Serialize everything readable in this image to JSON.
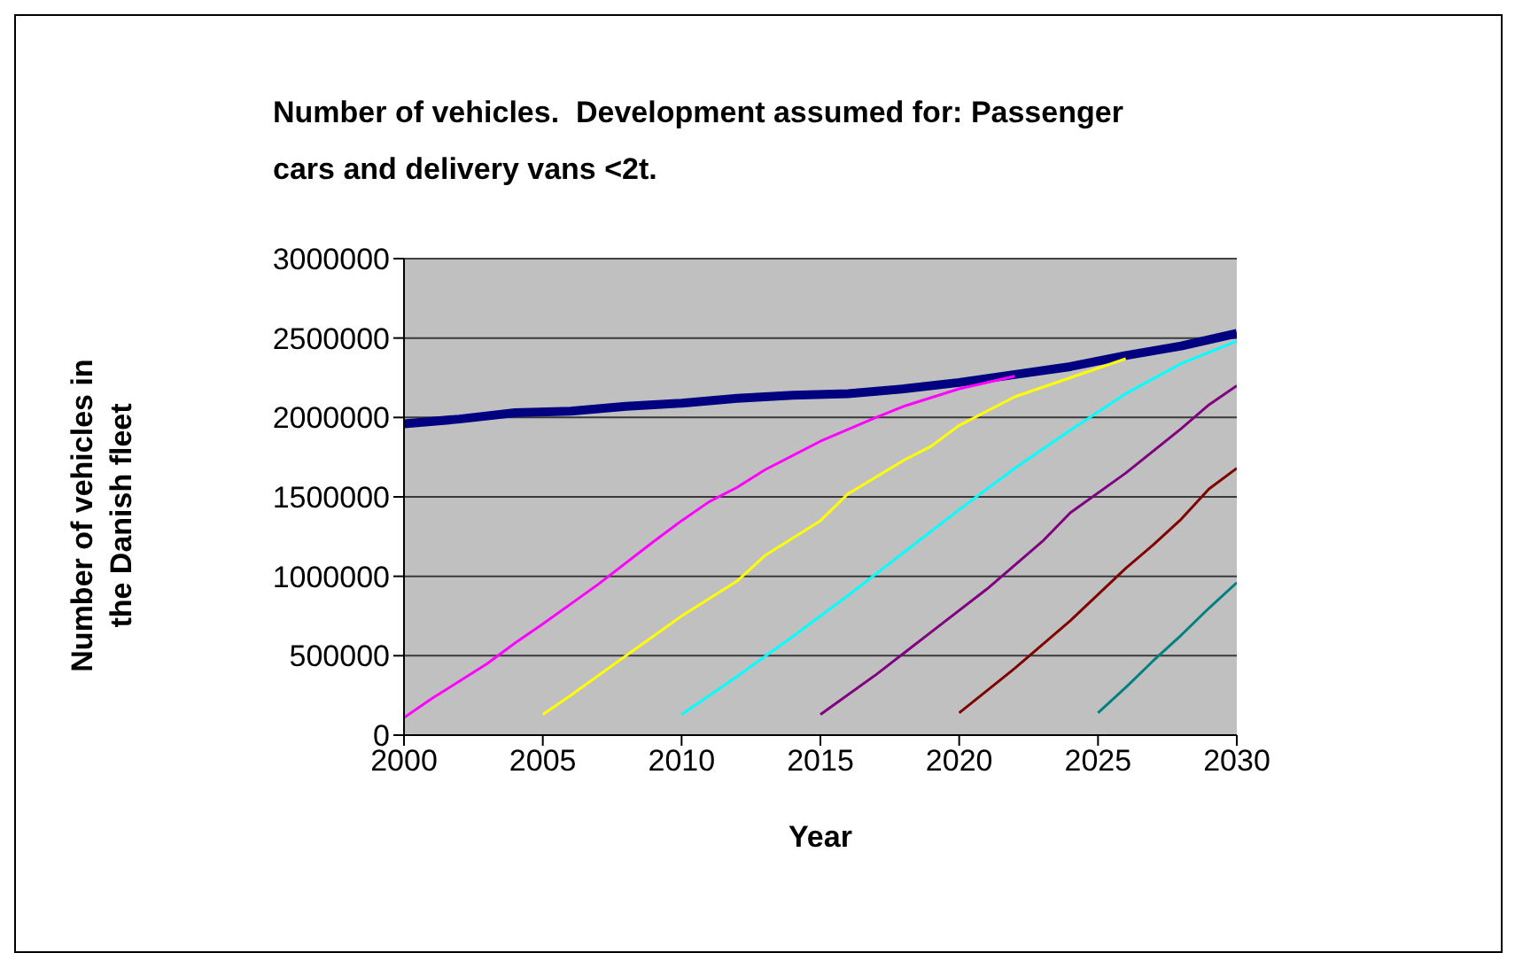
{
  "chart_data": {
    "type": "line",
    "title": "Number of vehicles.  Development assumed for: Passenger cars and delivery vans <2t.",
    "xlabel": "Year",
    "ylabel": "Number of vehicles in the Danish fleet",
    "xlim": [
      2000,
      2030
    ],
    "xticks": [
      2000,
      2005,
      2010,
      2015,
      2020,
      2025,
      2030
    ],
    "ylim": [
      0,
      3000000
    ],
    "yticks": [
      0,
      500000,
      1000000,
      1500000,
      2000000,
      2500000,
      3000000
    ],
    "grid": "y",
    "marker": "none",
    "line_style": "solid",
    "series": [
      {
        "color": "#000080",
        "x": [
          2000,
          2002,
          2004,
          2006,
          2008,
          2010,
          2012,
          2014,
          2016,
          2018,
          2020,
          2022,
          2024,
          2026,
          2028,
          2030
        ],
        "values": [
          1960000,
          1990000,
          2030000,
          2040000,
          2070000,
          2090000,
          2120000,
          2140000,
          2150000,
          2180000,
          2220000,
          2270000,
          2320000,
          2390000,
          2450000,
          2530000
        ]
      },
      {
        "color": "#ff00ff",
        "x": [
          2000,
          2001,
          2003,
          2004,
          2005,
          2007,
          2009,
          2010,
          2011,
          2012,
          2013,
          2015,
          2017,
          2018,
          2020,
          2022
        ],
        "values": [
          110000,
          230000,
          450000,
          580000,
          700000,
          950000,
          1220000,
          1350000,
          1470000,
          1560000,
          1670000,
          1850000,
          2000000,
          2070000,
          2180000,
          2260000
        ]
      },
      {
        "color": "#ffff00",
        "x": [
          2005,
          2006,
          2008,
          2010,
          2012,
          2013,
          2015,
          2016,
          2018,
          2019,
          2020,
          2022,
          2024,
          2026
        ],
        "values": [
          130000,
          250000,
          500000,
          750000,
          970000,
          1130000,
          1350000,
          1520000,
          1730000,
          1820000,
          1950000,
          2130000,
          2250000,
          2370000
        ]
      },
      {
        "color": "#00ffff",
        "x": [
          2010,
          2012,
          2014,
          2016,
          2018,
          2020,
          2022,
          2024,
          2026,
          2028,
          2030
        ],
        "values": [
          130000,
          370000,
          620000,
          880000,
          1150000,
          1420000,
          1680000,
          1920000,
          2150000,
          2340000,
          2480000
        ]
      },
      {
        "color": "#800080",
        "x": [
          2015,
          2017,
          2019,
          2021,
          2023,
          2024,
          2026,
          2028,
          2029,
          2030
        ],
        "values": [
          130000,
          380000,
          650000,
          920000,
          1220000,
          1400000,
          1650000,
          1930000,
          2080000,
          2200000
        ]
      },
      {
        "color": "#800000",
        "x": [
          2020,
          2022,
          2024,
          2026,
          2027,
          2028,
          2029,
          2030
        ],
        "values": [
          140000,
          420000,
          720000,
          1050000,
          1200000,
          1360000,
          1550000,
          1680000
        ]
      },
      {
        "color": "#008080",
        "x": [
          2025,
          2026,
          2027,
          2028,
          2029,
          2030
        ],
        "values": [
          140000,
          300000,
          470000,
          630000,
          800000,
          960000
        ]
      }
    ]
  }
}
